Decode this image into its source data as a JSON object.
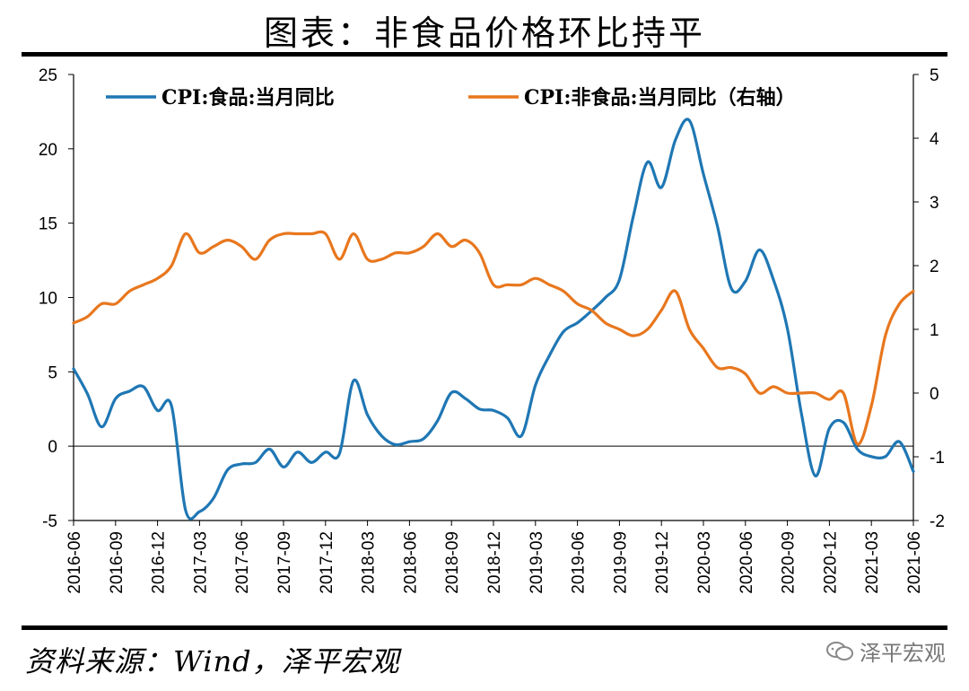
{
  "title": "图表：非食品价格环比持平",
  "source": "资料来源：Wind，泽平宏观",
  "watermark": "泽平宏观",
  "chart_data": {
    "type": "line",
    "x_tick_labels": [
      "2016-06",
      "2016-09",
      "2016-12",
      "2017-03",
      "2017-06",
      "2017-09",
      "2017-12",
      "2018-03",
      "2018-06",
      "2018-09",
      "2018-12",
      "2019-03",
      "2019-06",
      "2019-09",
      "2019-12",
      "2020-03",
      "2020-06",
      "2020-09",
      "2020-12",
      "2021-03",
      "2021-06"
    ],
    "x": [
      "2016-06",
      "2016-07",
      "2016-08",
      "2016-09",
      "2016-10",
      "2016-11",
      "2016-12",
      "2017-01",
      "2017-02",
      "2017-03",
      "2017-04",
      "2017-05",
      "2017-06",
      "2017-07",
      "2017-08",
      "2017-09",
      "2017-10",
      "2017-11",
      "2017-12",
      "2018-01",
      "2018-02",
      "2018-03",
      "2018-04",
      "2018-05",
      "2018-06",
      "2018-07",
      "2018-08",
      "2018-09",
      "2018-10",
      "2018-11",
      "2018-12",
      "2019-01",
      "2019-02",
      "2019-03",
      "2019-04",
      "2019-05",
      "2019-06",
      "2019-07",
      "2019-08",
      "2019-09",
      "2019-10",
      "2019-11",
      "2019-12",
      "2020-01",
      "2020-02",
      "2020-03",
      "2020-04",
      "2020-05",
      "2020-06",
      "2020-07",
      "2020-08",
      "2020-09",
      "2020-10",
      "2020-11",
      "2020-12",
      "2021-01",
      "2021-02",
      "2021-03",
      "2021-04",
      "2021-05",
      "2021-06"
    ],
    "y_left": {
      "min": -5,
      "max": 25,
      "ticks": [
        -5,
        0,
        5,
        10,
        15,
        20,
        25
      ]
    },
    "y_right": {
      "min": -2,
      "max": 5,
      "ticks": [
        -2,
        -1,
        0,
        1,
        2,
        3,
        4,
        5
      ]
    },
    "series": [
      {
        "name": "CPI:食品:当月同比",
        "axis": "left",
        "color": "#1f77b4",
        "values": [
          5.2,
          3.5,
          1.3,
          3.2,
          3.7,
          4.0,
          2.4,
          2.7,
          -4.3,
          -4.4,
          -3.5,
          -1.6,
          -1.2,
          -1.1,
          -0.2,
          -1.4,
          -0.4,
          -1.1,
          -0.4,
          -0.5,
          4.4,
          2.1,
          0.7,
          0.1,
          0.3,
          0.5,
          1.7,
          3.6,
          3.2,
          2.5,
          2.4,
          1.9,
          0.7,
          4.1,
          6.1,
          7.7,
          8.3,
          9.1,
          10.0,
          11.2,
          15.5,
          19.1,
          17.4,
          20.6,
          21.9,
          18.3,
          14.8,
          10.6,
          11.1,
          13.2,
          11.2,
          7.9,
          2.2,
          -2.0,
          1.2,
          1.6,
          -0.2,
          -0.7,
          -0.7,
          0.3,
          -1.7
        ]
      },
      {
        "name": "CPI:非食品:当月同比（右轴）",
        "axis": "right",
        "color": "#e8771e",
        "values": [
          1.1,
          1.2,
          1.4,
          1.4,
          1.6,
          1.7,
          1.8,
          2.0,
          2.5,
          2.2,
          2.3,
          2.4,
          2.3,
          2.1,
          2.4,
          2.5,
          2.5,
          2.5,
          2.5,
          2.1,
          2.5,
          2.1,
          2.1,
          2.2,
          2.2,
          2.3,
          2.5,
          2.3,
          2.4,
          2.2,
          1.7,
          1.7,
          1.7,
          1.8,
          1.7,
          1.6,
          1.4,
          1.3,
          1.1,
          1.0,
          0.9,
          1.0,
          1.3,
          1.6,
          1.0,
          0.7,
          0.4,
          0.4,
          0.3,
          0.0,
          0.1,
          0.0,
          0.0,
          0.0,
          -0.1,
          0.0,
          -0.8,
          -0.2,
          0.9,
          1.4,
          1.6
        ]
      }
    ],
    "legend": "top"
  }
}
